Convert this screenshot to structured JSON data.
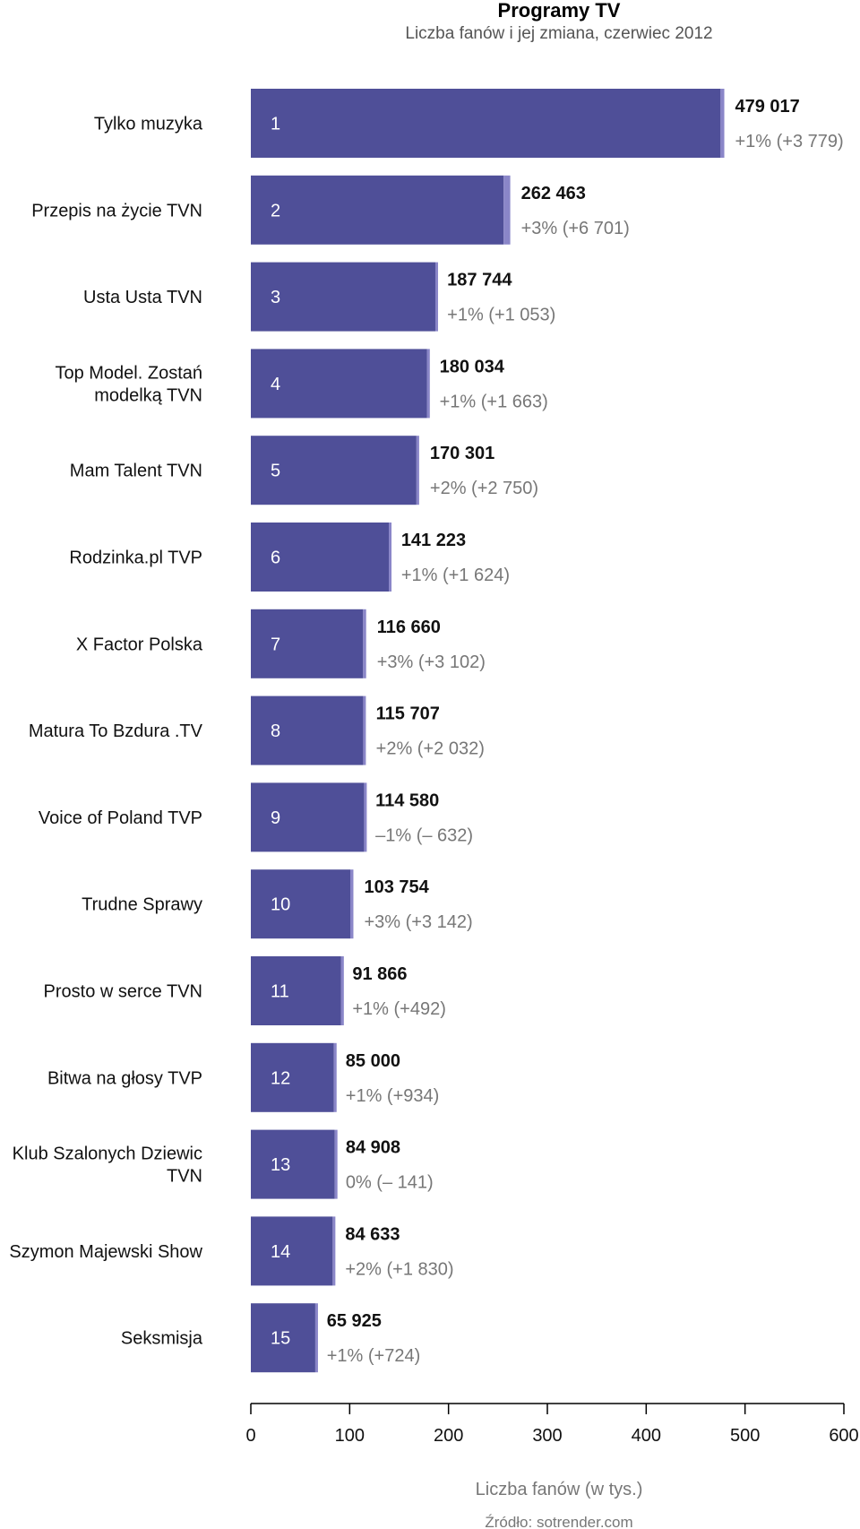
{
  "chart_data": {
    "type": "bar",
    "orientation": "horizontal",
    "title": "Programy TV",
    "subtitle": "Liczba fanów i jej zmiana, czerwiec 2012",
    "xlabel": "Liczba fanów (w tys.)",
    "source": "Źródło: sotrender.com",
    "xlim": [
      0,
      600
    ],
    "xticks": [
      0,
      100,
      200,
      300,
      400,
      500,
      600
    ],
    "grid": false,
    "colors": {
      "bar": "#4f4f98",
      "change": "#8a86c8"
    },
    "categories": [
      {
        "rank": "1",
        "label": [
          "Tylko muzyka"
        ],
        "value": 479017,
        "change": 3779,
        "value_label": "479 017",
        "change_label": "+1% (+3 779)"
      },
      {
        "rank": "2",
        "label": [
          "Przepis na życie TVN"
        ],
        "value": 262463,
        "change": 6701,
        "value_label": "262 463",
        "change_label": "+3% (+6 701)"
      },
      {
        "rank": "3",
        "label": [
          "Usta Usta TVN"
        ],
        "value": 187744,
        "change": 1053,
        "value_label": "187 744",
        "change_label": "+1% (+1 053)"
      },
      {
        "rank": "4",
        "label": [
          "Top Model. Zostań",
          "modelką TVN"
        ],
        "value": 180034,
        "change": 1663,
        "value_label": "180 034",
        "change_label": "+1% (+1 663)"
      },
      {
        "rank": "5",
        "label": [
          "Mam Talent TVN"
        ],
        "value": 170301,
        "change": 2750,
        "value_label": "170 301",
        "change_label": "+2% (+2 750)"
      },
      {
        "rank": "6",
        "label": [
          "Rodzinka.pl TVP"
        ],
        "value": 141223,
        "change": 1624,
        "value_label": "141 223",
        "change_label": "+1% (+1 624)"
      },
      {
        "rank": "7",
        "label": [
          "X Factor Polska"
        ],
        "value": 116660,
        "change": 3102,
        "value_label": "116 660",
        "change_label": "+3% (+3 102)"
      },
      {
        "rank": "8",
        "label": [
          "Matura To Bzdura .TV"
        ],
        "value": 115707,
        "change": 2032,
        "value_label": "115 707",
        "change_label": "+2% (+2 032)"
      },
      {
        "rank": "9",
        "label": [
          "Voice of Poland TVP"
        ],
        "value": 114580,
        "change": -632,
        "value_label": "114 580",
        "change_label": "–1% (– 632)"
      },
      {
        "rank": "10",
        "label": [
          "Trudne Sprawy"
        ],
        "value": 103754,
        "change": 3142,
        "value_label": "103 754",
        "change_label": "+3% (+3 142)"
      },
      {
        "rank": "11",
        "label": [
          "Prosto w serce TVN"
        ],
        "value": 91866,
        "change": 492,
        "value_label": "91 866",
        "change_label": "+1% (+492)"
      },
      {
        "rank": "12",
        "label": [
          "Bitwa na głosy TVP"
        ],
        "value": 85000,
        "change": 934,
        "value_label": "85 000",
        "change_label": "+1% (+934)"
      },
      {
        "rank": "13",
        "label": [
          "Klub Szalonych Dziewic",
          "TVN"
        ],
        "value": 84908,
        "change": -141,
        "value_label": "84 908",
        "change_label": "0% (– 141)"
      },
      {
        "rank": "14",
        "label": [
          "Szymon Majewski Show"
        ],
        "value": 84633,
        "change": 1830,
        "value_label": "84 633",
        "change_label": "+2% (+1 830)"
      },
      {
        "rank": "15",
        "label": [
          "Seksmisja"
        ],
        "value": 65925,
        "change": 724,
        "value_label": "65 925",
        "change_label": "+1% (+724)"
      }
    ]
  }
}
